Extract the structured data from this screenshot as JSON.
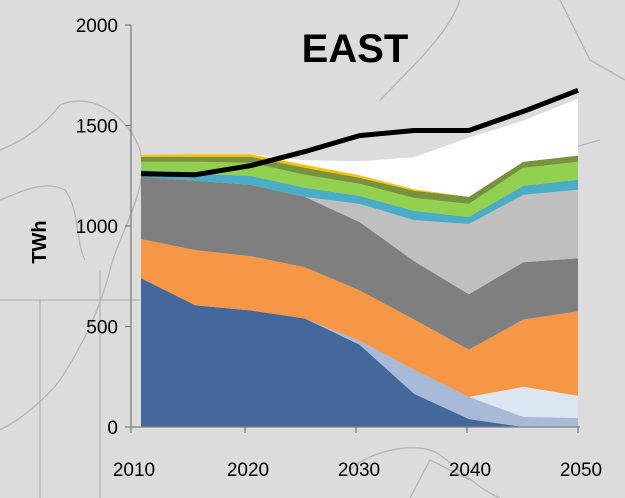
{
  "chart_data": {
    "type": "area",
    "title": "EAST",
    "xlabel": "",
    "ylabel": "TWh",
    "x": [
      2010,
      2015,
      2020,
      2025,
      2030,
      2035,
      2040,
      2045,
      2050
    ],
    "x_ticks": [
      "2010",
      "2020",
      "2030",
      "2040",
      "2050"
    ],
    "y_ticks": [
      "0",
      "500",
      "1000",
      "1500",
      "2000"
    ],
    "xlim": [
      2010,
      2050
    ],
    "ylim": [
      0,
      2000
    ],
    "grid": false,
    "colors": [
      "#43699c",
      "#a9b9d8",
      "#dce6f1",
      "#f69647",
      "#7f7f7f",
      "#bfbfbf",
      "#4bacc6",
      "#92d050",
      "#77933c",
      "#ffc000",
      "#ffffff"
    ],
    "series": [
      {
        "values": [
          740,
          605,
          580,
          540,
          410,
          165,
          40,
          0,
          0
        ]
      },
      {
        "values": [
          0,
          0,
          0,
          0,
          20,
          120,
          110,
          50,
          45
        ]
      },
      {
        "values": [
          0,
          0,
          0,
          0,
          0,
          0,
          0,
          150,
          110
        ]
      },
      {
        "values": [
          195,
          275,
          270,
          255,
          250,
          250,
          235,
          335,
          420
        ]
      },
      {
        "values": [
          310,
          345,
          355,
          350,
          340,
          290,
          275,
          285,
          265
        ]
      },
      {
        "values": [
          0,
          0,
          0,
          0,
          90,
          205,
          350,
          335,
          340
        ]
      },
      {
        "values": [
          35,
          35,
          45,
          45,
          40,
          45,
          35,
          45,
          50
        ]
      },
      {
        "values": [
          40,
          60,
          65,
          65,
          60,
          65,
          65,
          90,
          90
        ]
      },
      {
        "values": [
          25,
          25,
          30,
          35,
          30,
          35,
          35,
          30,
          30
        ]
      },
      {
        "values": [
          8,
          12,
          12,
          15,
          12,
          8,
          0,
          0,
          0
        ]
      },
      {
        "values": [
          0,
          0,
          0,
          22,
          70,
          160,
          295,
          205,
          284
        ]
      }
    ],
    "demand_line": {
      "color": "#000000",
      "values": [
        1260,
        1255,
        1300,
        1370,
        1450,
        1475,
        1475,
        1570,
        1675
      ]
    }
  }
}
